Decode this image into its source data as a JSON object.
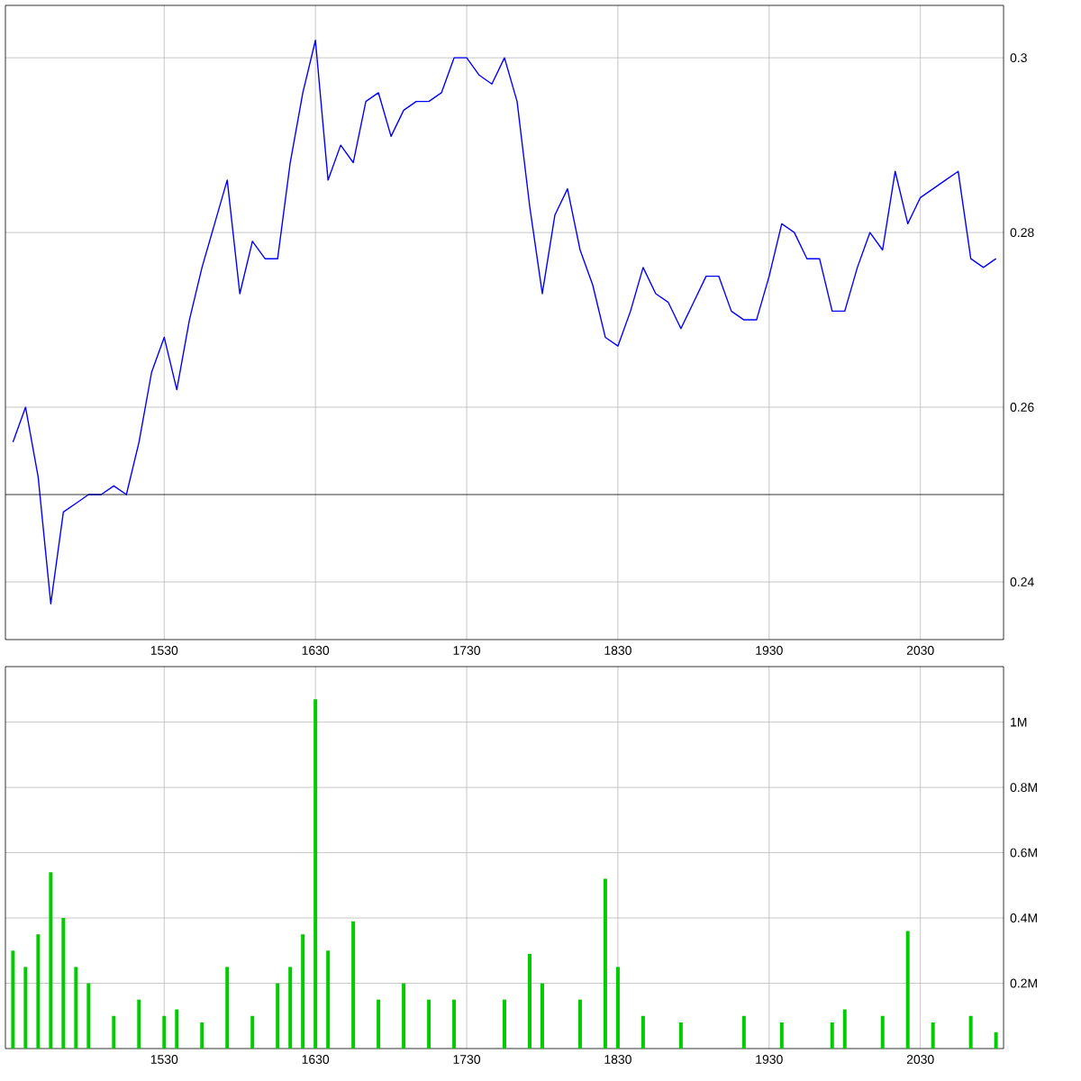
{
  "chart_data": [
    {
      "type": "line",
      "grid": true,
      "ylim": [
        0.2334,
        0.306
      ],
      "categories": [
        null,
        null,
        null,
        null,
        null,
        null,
        null,
        null,
        null,
        null,
        null,
        null,
        "1530",
        null,
        null,
        null,
        null,
        null,
        null,
        null,
        null,
        null,
        null,
        null,
        "1630",
        null,
        null,
        null,
        null,
        null,
        null,
        null,
        null,
        null,
        null,
        null,
        "1730",
        null,
        null,
        null,
        null,
        null,
        null,
        null,
        null,
        null,
        null,
        null,
        "1830",
        null,
        null,
        null,
        null,
        null,
        null,
        null,
        null,
        null,
        null,
        null,
        "1930",
        null,
        null,
        null,
        null,
        null,
        null,
        null,
        null,
        null,
        null,
        null,
        "2030",
        null,
        null,
        null,
        null,
        null,
        null
      ],
      "yticks": [
        0.24,
        0.26,
        0.28,
        0.3
      ],
      "ref_lines": [
        {
          "axis": "y",
          "value": 0.25,
          "color": "#000000"
        }
      ],
      "series": [
        {
          "color": "#0000ff",
          "values": [
            0.256,
            0.26,
            0.252,
            0.2375,
            0.248,
            0.249,
            0.25,
            0.25,
            0.251,
            0.25,
            0.256,
            0.264,
            0.268,
            0.262,
            0.27,
            0.276,
            0.281,
            0.286,
            0.273,
            0.279,
            0.277,
            0.277,
            0.288,
            0.296,
            0.302,
            0.286,
            0.29,
            0.288,
            0.295,
            0.296,
            0.291,
            0.294,
            0.295,
            0.295,
            0.296,
            0.3,
            0.3,
            0.298,
            0.297,
            0.3,
            0.295,
            0.283,
            0.273,
            0.282,
            0.285,
            0.278,
            0.274,
            0.268,
            0.267,
            0.271,
            0.276,
            0.273,
            0.272,
            0.269,
            0.272,
            0.275,
            0.275,
            0.271,
            0.27,
            0.27,
            0.275,
            0.281,
            0.28,
            0.277,
            0.277,
            0.271,
            0.271,
            0.276,
            0.28,
            0.278,
            0.287,
            0.281,
            0.284,
            0.285,
            0.286,
            0.287,
            0.277,
            0.276,
            0.277
          ]
        }
      ]
    },
    {
      "type": "bar",
      "grid": true,
      "ylim": [
        0,
        1.17
      ],
      "categories": [
        null,
        null,
        null,
        null,
        null,
        null,
        null,
        null,
        null,
        null,
        null,
        null,
        "1530",
        null,
        null,
        null,
        null,
        null,
        null,
        null,
        null,
        null,
        null,
        null,
        "1630",
        null,
        null,
        null,
        null,
        null,
        null,
        null,
        null,
        null,
        null,
        null,
        "1730",
        null,
        null,
        null,
        null,
        null,
        null,
        null,
        null,
        null,
        null,
        null,
        "1830",
        null,
        null,
        null,
        null,
        null,
        null,
        null,
        null,
        null,
        null,
        null,
        "1930",
        null,
        null,
        null,
        null,
        null,
        null,
        null,
        null,
        null,
        null,
        null,
        "2030",
        null,
        null,
        null,
        null,
        null,
        null
      ],
      "yticks": [
        {
          "value": 0.2,
          "label": "0.2M"
        },
        {
          "value": 0.4,
          "label": "0.4M"
        },
        {
          "value": 0.6,
          "label": "0.6M"
        },
        {
          "value": 0.8,
          "label": "0.8M"
        },
        {
          "value": 1,
          "label": "1M"
        }
      ],
      "series": [
        {
          "color": "#00cc00",
          "values": [
            0.3,
            0.25,
            0.35,
            0.54,
            0.4,
            0.25,
            0.2,
            null,
            0.1,
            null,
            0.15,
            null,
            0.1,
            0.12,
            null,
            0.08,
            null,
            0.25,
            null,
            0.1,
            null,
            0.2,
            0.25,
            0.35,
            1.07,
            0.3,
            null,
            0.39,
            null,
            0.15,
            null,
            0.2,
            null,
            0.15,
            null,
            0.15,
            null,
            null,
            null,
            0.15,
            null,
            0.29,
            0.2,
            null,
            null,
            0.15,
            null,
            0.52,
            0.25,
            null,
            0.1,
            null,
            null,
            0.08,
            null,
            null,
            null,
            null,
            0.1,
            null,
            null,
            0.08,
            null,
            null,
            null,
            0.08,
            0.12,
            null,
            null,
            0.1,
            null,
            0.36,
            null,
            0.08,
            null,
            null,
            0.1,
            null,
            0.05
          ]
        }
      ]
    }
  ]
}
